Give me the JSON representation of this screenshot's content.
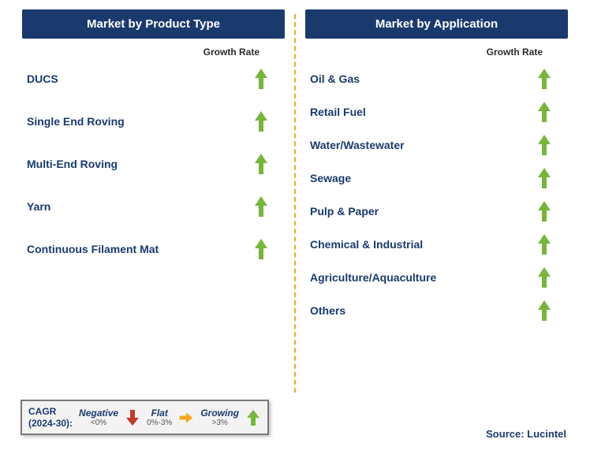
{
  "colors": {
    "header_bg": "#1a3a6e",
    "header_text": "#ffffff",
    "label_text": "#1a3a6e",
    "growth_label": "#2a2a2a",
    "divider": "#f5a623",
    "arrow_up": "#77b53c",
    "arrow_down": "#c0392b",
    "arrow_flat": "#f5a623",
    "legend_border": "#7a7a7a",
    "legend_bg": "#f3f3f3"
  },
  "left": {
    "header": "Market by Product Type",
    "growth_label": "Growth Rate",
    "items": [
      {
        "label": "DUCS",
        "trend": "up"
      },
      {
        "label": "Single End Roving",
        "trend": "up"
      },
      {
        "label": "Multi-End Roving",
        "trend": "up"
      },
      {
        "label": "Yarn",
        "trend": "up"
      },
      {
        "label": "Continuous Filament Mat",
        "trend": "up"
      }
    ]
  },
  "right": {
    "header": "Market by Application",
    "growth_label": "Growth Rate",
    "items": [
      {
        "label": "Oil & Gas",
        "trend": "up"
      },
      {
        "label": "Retail Fuel",
        "trend": "up"
      },
      {
        "label": "Water/Wastewater",
        "trend": "up"
      },
      {
        "label": "Sewage",
        "trend": "up"
      },
      {
        "label": "Pulp & Paper",
        "trend": "up"
      },
      {
        "label": "Chemical & Industrial",
        "trend": "up"
      },
      {
        "label": "Agriculture/Aquaculture",
        "trend": "up"
      },
      {
        "label": "Others",
        "trend": "up"
      }
    ]
  },
  "legend": {
    "title1": "CAGR",
    "title2": "(2024-30):",
    "neg_label": "Negative",
    "neg_sub": "<0%",
    "flat_label": "Flat",
    "flat_sub": "0%-3%",
    "grow_label": "Growing",
    "grow_sub": ">3%"
  },
  "source": "Source: Lucintel"
}
